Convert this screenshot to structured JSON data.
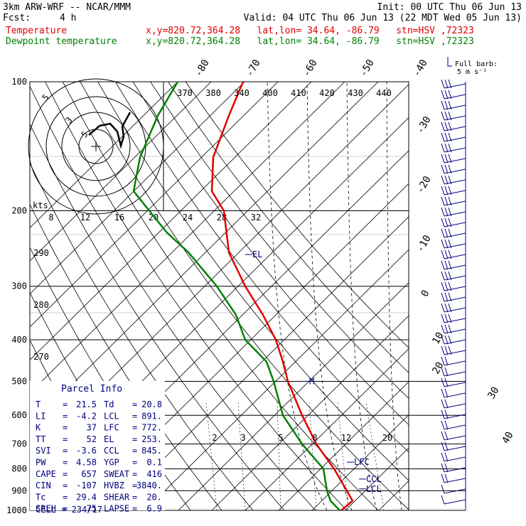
{
  "header": {
    "model": "3km ARW-WRF -- NCAR/MMM",
    "init": "Init: 00 UTC Thu 06 Jun 13",
    "fcst_label": "Fcst:",
    "fcst_value": "4 h",
    "valid": "Valid: 04 UTC Thu 06 Jun 13 (22 MDT Wed 05 Jun 13)",
    "temp_label": "Temperature",
    "dew_label": "Dewpoint temperature",
    "location": "x,y=820.72,364.28   lat,lon= 34.64, -86.79   stn=HSV ,72323"
  },
  "barb_legend": {
    "title": "Full barb:",
    "value": "5 m s⁻¹"
  },
  "hodograph": {
    "units": "kts",
    "rings": [
      "5",
      "3",
      "5"
    ]
  },
  "chart_data": {
    "type": "line",
    "y_axis": "pressure (hPa), log scale",
    "pressure_levels": [
      100,
      200,
      300,
      400,
      500,
      600,
      700,
      800,
      900,
      1000
    ],
    "pressure_labels": [
      "100",
      "200",
      "300",
      "400",
      "500",
      "600",
      "700",
      "800",
      "900",
      "1000"
    ],
    "isotherm_labels": [
      "-80",
      "-70",
      "-60",
      "-50",
      "-40",
      "-30",
      "-20",
      "-10",
      "0",
      "10",
      "20",
      "30",
      "40"
    ],
    "theta_labels": [
      "370",
      "380",
      "340",
      "400",
      "410",
      "420",
      "430",
      "440"
    ],
    "theta_left_labels": [
      "290",
      "280",
      "270"
    ],
    "mixing_ratio_labels": [
      "2",
      "3",
      "5",
      "8",
      "12",
      "20"
    ],
    "hodo_speed_labels": [
      "8",
      "12",
      "16",
      "20",
      "24",
      "28",
      "32"
    ],
    "level_markers": [
      "EL",
      "M",
      "LFC",
      "CCL",
      "LCL"
    ],
    "series": [
      {
        "name": "Temperature",
        "color": "#e00000",
        "points": [
          [
            100,
            342
          ],
          [
            120,
            322
          ],
          [
            150,
            300
          ],
          [
            180,
            298
          ],
          [
            200,
            315
          ],
          [
            250,
            322
          ],
          [
            300,
            345
          ],
          [
            350,
            370
          ],
          [
            400,
            388
          ],
          [
            450,
            398
          ],
          [
            500,
            405
          ],
          [
            600,
            425
          ],
          [
            700,
            445
          ],
          [
            800,
            470
          ],
          [
            900,
            488
          ],
          [
            950,
            496
          ],
          [
            1000,
            480
          ]
        ]
      },
      {
        "name": "Dewpoint temperature",
        "color": "#008000",
        "points": [
          [
            100,
            250
          ],
          [
            120,
            222
          ],
          [
            150,
            197
          ],
          [
            180,
            188
          ],
          [
            200,
            210
          ],
          [
            225,
            235
          ],
          [
            250,
            265
          ],
          [
            300,
            305
          ],
          [
            350,
            332
          ],
          [
            400,
            345
          ],
          [
            450,
            375
          ],
          [
            500,
            385
          ],
          [
            600,
            398
          ],
          [
            700,
            425
          ],
          [
            800,
            455
          ],
          [
            900,
            460
          ],
          [
            950,
            465
          ],
          [
            1000,
            478
          ]
        ]
      }
    ]
  },
  "parcel_info": {
    "title": "Parcel Info",
    "rows": [
      {
        "l1": "T",
        "v1": "21.5",
        "l2": "Td",
        "v2": "20.8"
      },
      {
        "l1": "LI",
        "v1": "-4.2",
        "l2": "LCL",
        "v2": "891."
      },
      {
        "l1": "K",
        "v1": "37",
        "l2": "LFC",
        "v2": "772."
      },
      {
        "l1": "TT",
        "v1": "52",
        "l2": "EL",
        "v2": "253."
      },
      {
        "l1": "SVI",
        "v1": "-3.6",
        "l2": "CCL",
        "v2": "845."
      },
      {
        "l1": "PW",
        "v1": "4.58",
        "l2": "YGP",
        "v2": "0.1"
      },
      {
        "l1": "CAPE",
        "v1": "657",
        "l2": "SWEAT",
        "v2": "416"
      },
      {
        "l1": "CIN",
        "v1": "-107",
        "l2": "HVBZ",
        "v2": "3840."
      },
      {
        "l1": "Tc",
        "v1": "29.4",
        "l2": "SHEAR",
        "v2": "20."
      },
      {
        "l1": "SREH",
        "v1": "75",
        "l2": "LAPSE",
        "v2": "6.9"
      }
    ],
    "cell": "CELL = 234/17"
  }
}
